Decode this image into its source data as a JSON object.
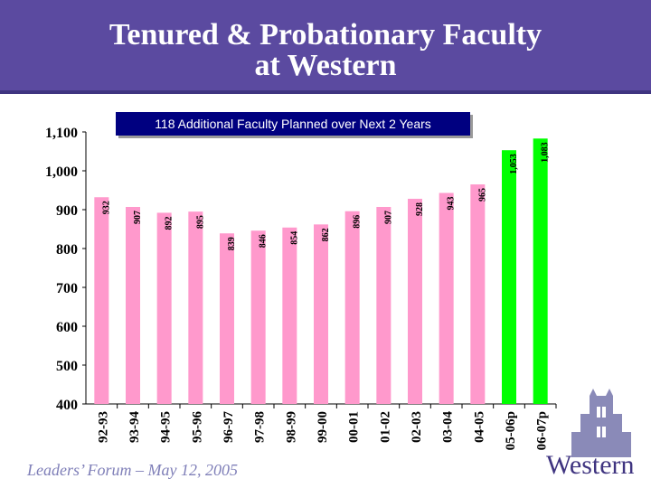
{
  "header": {
    "title_line1": "Tenured & Probationary Faculty",
    "title_line2": "at Western"
  },
  "banner": {
    "text": "118 Additional Faculty Planned over Next 2 Years"
  },
  "footer": {
    "text": "Leaders’ Forum – May 12, 2005"
  },
  "logo": {
    "word": "Western"
  },
  "colors": {
    "header": "#5b4aa0",
    "bar_actual": "#ff99cc",
    "bar_planned": "#00ff00",
    "banner": "#000080"
  },
  "chart_data": {
    "type": "bar",
    "title": "",
    "xlabel": "",
    "ylabel": "",
    "ylim": [
      400,
      1100
    ],
    "yticks": [
      "400",
      "500",
      "600",
      "700",
      "800",
      "900",
      "1,000",
      "1,100"
    ],
    "ytick_values": [
      400,
      500,
      600,
      700,
      800,
      900,
      1000,
      1100
    ],
    "categories": [
      "92-93",
      "93-94",
      "94-95",
      "95-96",
      "96-97",
      "97-98",
      "98-99",
      "99-00",
      "00-01",
      "01-02",
      "02-03",
      "03-04",
      "04-05",
      "05-06p",
      "06-07p"
    ],
    "values": [
      932,
      907,
      892,
      895,
      839,
      846,
      854,
      862,
      896,
      907,
      928,
      943,
      965,
      1053,
      1083
    ],
    "value_labels": [
      "932",
      "907",
      "892",
      "895",
      "839",
      "846",
      "854",
      "862",
      "896",
      "907",
      "928",
      "943",
      "965",
      "1,053",
      "1,083"
    ],
    "planned": [
      false,
      false,
      false,
      false,
      false,
      false,
      false,
      false,
      false,
      false,
      false,
      false,
      false,
      true,
      true
    ],
    "grid": false
  }
}
